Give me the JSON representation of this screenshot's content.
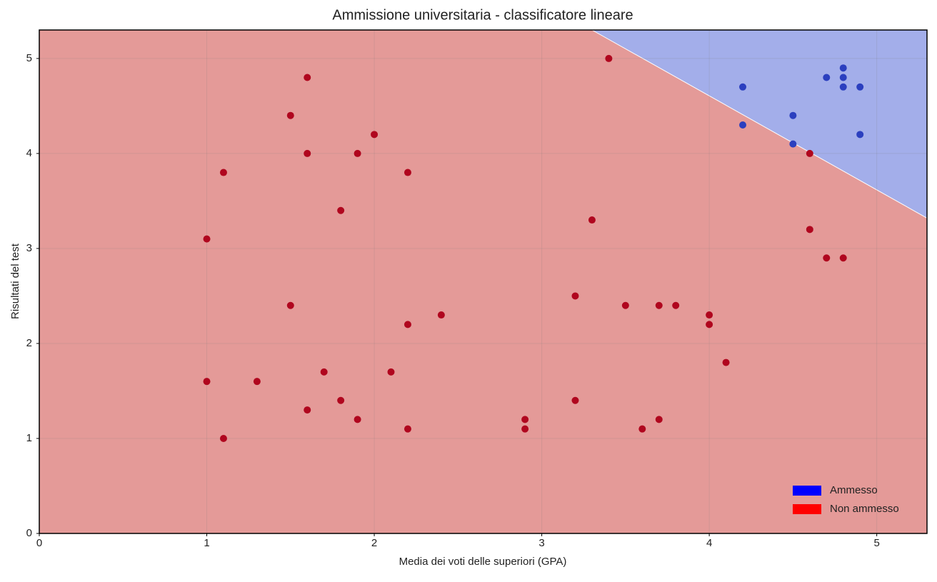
{
  "chart_data": {
    "type": "scatter",
    "title": "Ammissione universitaria - classificatore lineare",
    "x_label": "Media dei voti delle superiori (GPA)",
    "y_label": "Risultati del test",
    "xlim": [
      0,
      5.3
    ],
    "ylim": [
      0,
      5.3
    ],
    "xticks": [
      0,
      1,
      2,
      3,
      4,
      5
    ],
    "yticks": [
      0,
      1,
      2,
      3,
      4,
      5
    ],
    "grid": true,
    "legend": "lower right",
    "decision_boundary": {
      "x": [
        3.3,
        5.3
      ],
      "y": [
        5.3,
        3.32
      ]
    },
    "series": [
      {
        "name": "Ammesso",
        "color": "#0000ff",
        "point_color": "#2b3fbf",
        "region_color": "#a3aeea",
        "x": [
          4.2,
          4.2,
          4.5,
          4.5,
          4.7,
          4.8,
          4.8,
          4.8,
          4.9,
          4.9
        ],
        "y": [
          4.7,
          4.3,
          4.4,
          4.1,
          4.8,
          4.9,
          4.8,
          4.7,
          4.7,
          4.2
        ]
      },
      {
        "name": "Non ammesso",
        "color": "#ff0000",
        "point_color": "#b0061e",
        "region_color": "#e49a98",
        "x": [
          3.4,
          1.6,
          1.5,
          2.0,
          1.6,
          1.9,
          1.1,
          2.2,
          1.8,
          1.0,
          3.3,
          4.6,
          4.6,
          4.7,
          4.8,
          3.2,
          1.5,
          2.4,
          2.2,
          3.5,
          3.7,
          3.8,
          4.0,
          4.0,
          4.1,
          1.0,
          1.3,
          1.7,
          2.1,
          1.8,
          1.6,
          1.9,
          2.2,
          1.1,
          2.9,
          2.9,
          3.2,
          3.6,
          3.7
        ],
        "y": [
          5.0,
          4.8,
          4.4,
          4.2,
          4.0,
          4.0,
          3.8,
          3.8,
          3.4,
          3.1,
          3.3,
          4.0,
          3.2,
          2.9,
          2.9,
          2.5,
          2.4,
          2.3,
          2.2,
          2.4,
          2.4,
          2.4,
          2.3,
          2.2,
          1.8,
          1.6,
          1.6,
          1.7,
          1.7,
          1.4,
          1.3,
          1.2,
          1.1,
          1.0,
          1.2,
          1.1,
          1.4,
          1.1,
          1.2
        ]
      }
    ]
  }
}
